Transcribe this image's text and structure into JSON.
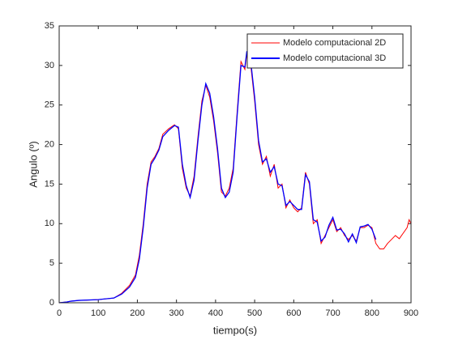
{
  "chart_data": {
    "type": "line",
    "x": [
      0,
      20,
      30,
      50,
      100,
      140,
      160,
      180,
      195,
      205,
      215,
      225,
      235,
      245,
      255,
      265,
      280,
      295,
      305,
      315,
      325,
      335,
      345,
      355,
      365,
      375,
      385,
      395,
      405,
      415,
      425,
      435,
      445,
      455,
      465,
      475,
      480,
      490,
      500,
      510,
      520,
      530,
      540,
      550,
      560,
      570,
      580,
      590,
      600,
      610,
      620,
      630,
      640,
      650,
      660,
      670,
      680,
      690,
      700,
      710,
      720,
      730,
      740,
      750,
      760,
      770,
      780,
      790,
      800,
      810,
      820,
      830,
      840,
      850,
      860,
      870,
      880,
      890,
      895,
      900
    ],
    "series": [
      {
        "name": "Modelo computacional 2D",
        "color": "#ff0000",
        "values": [
          0,
          0.1,
          0.2,
          0.3,
          0.4,
          0.6,
          1.2,
          2.2,
          3.5,
          6,
          10,
          15,
          17.8,
          18.5,
          19.5,
          21.3,
          22,
          22.5,
          22,
          17,
          14.5,
          13.5,
          16,
          21,
          25.5,
          27.5,
          26,
          23,
          19,
          14,
          13.5,
          14.5,
          17,
          24,
          30.5,
          29.5,
          31.5,
          30,
          25.5,
          20,
          17.5,
          18.5,
          16,
          17.5,
          14.5,
          15,
          12,
          13,
          12,
          11.5,
          12,
          16.5,
          15,
          10,
          10.5,
          7.5,
          8.5,
          9.5,
          10.5,
          9,
          9.5,
          8.5,
          8,
          8.5,
          7.8,
          9.5,
          9.5,
          9.8,
          9.5,
          7.5,
          6.8,
          6.8,
          7.5,
          8,
          8.5,
          8.1,
          8.8,
          9.5,
          10.5,
          10
        ]
      },
      {
        "name": "Modelo computacional 3D",
        "color": "#0000ff",
        "values": [
          0,
          0.1,
          0.2,
          0.3,
          0.4,
          0.6,
          1.1,
          2.0,
          3.2,
          5.5,
          9.5,
          14.5,
          17.5,
          18.3,
          19.3,
          21.0,
          21.8,
          22.4,
          22.2,
          17.5,
          14.8,
          13.3,
          15.5,
          20.5,
          25.0,
          27.7,
          26.5,
          23.5,
          19.5,
          14.5,
          13.3,
          14.0,
          16.5,
          23.5,
          30.0,
          29.8,
          31.8,
          30.5,
          26.0,
          20.5,
          17.8,
          18.2,
          16.5,
          17.2,
          15.0,
          14.8,
          12.3,
          12.8,
          12.3,
          11.8,
          11.8,
          16.2,
          15.3,
          10.5,
          10.2,
          7.8,
          8.3,
          9.8,
          10.8,
          9.2,
          9.3,
          8.7,
          7.7,
          8.7,
          7.6,
          9.6,
          9.7,
          9.9,
          9.3,
          8.0,
          null,
          null,
          null,
          null,
          null,
          null,
          null,
          null,
          null,
          null
        ]
      }
    ],
    "xlabel": "tiempo(s)",
    "ylabel": "Angulo (º)",
    "xlim": [
      0,
      900
    ],
    "xticks": [
      0,
      100,
      200,
      300,
      400,
      500,
      600,
      700,
      800,
      900
    ],
    "ylim": [
      0,
      35
    ],
    "yticks": [
      0,
      5,
      10,
      15,
      20,
      25,
      30,
      35
    ],
    "legend": "northeast"
  }
}
